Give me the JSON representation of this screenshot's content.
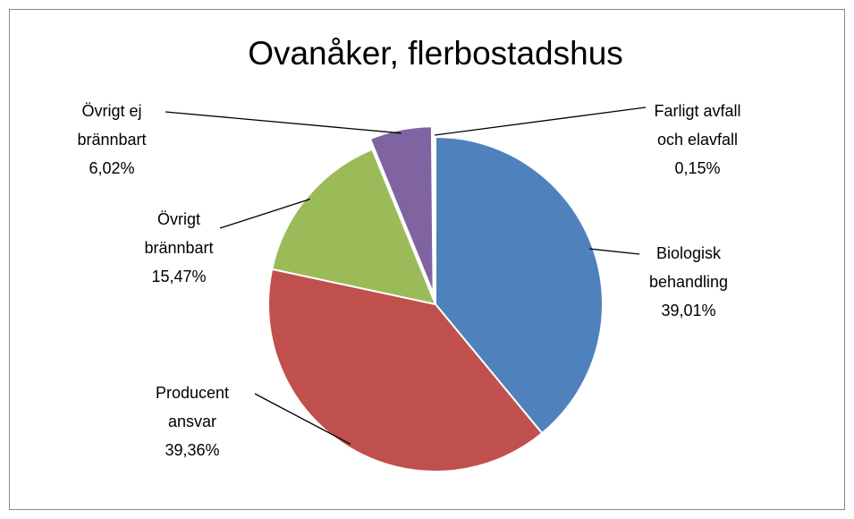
{
  "chart_data": {
    "type": "pie",
    "title": "Ovanåker, flerbostadshus",
    "categories": [
      "Biologisk\nbehandling",
      "Producent\nansvar",
      "Övrigt\nbrännbart",
      "Övrigt ej\nbrännbart",
      "Farligt avfall\noch elavfall"
    ],
    "values": [
      39.01,
      39.36,
      15.47,
      6.02,
      0.15
    ],
    "value_labels": [
      "39,01%",
      "39,36%",
      "15,47%",
      "6,02%",
      "0,15%"
    ],
    "colors": [
      "#4f81bd",
      "#c0504d",
      "#9bbb59",
      "#8064a2",
      "#4bacc6"
    ]
  }
}
